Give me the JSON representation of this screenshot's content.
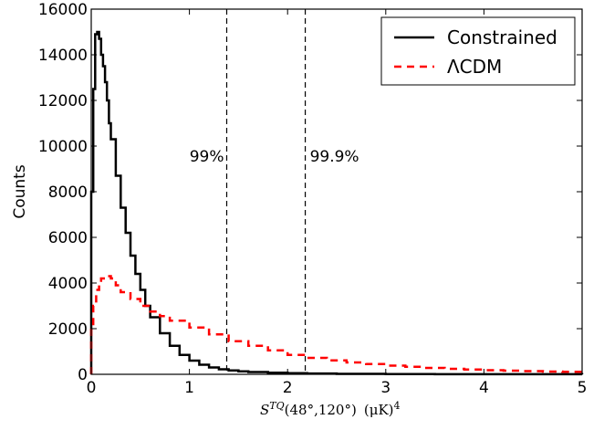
{
  "chart_data": {
    "type": "line",
    "title": "",
    "xlabel": {
      "main": "S",
      "sup": "TQ",
      "args": "(48°,120°)",
      "units": "(μK)",
      "power": "4"
    },
    "ylabel": "Counts",
    "xlim": [
      0,
      5
    ],
    "ylim": [
      0,
      16000
    ],
    "xticks": [
      "0",
      "1",
      "2",
      "3",
      "4",
      "5"
    ],
    "yticks": [
      "0",
      "2000",
      "4000",
      "6000",
      "8000",
      "10000",
      "12000",
      "14000",
      "16000"
    ],
    "grid": false,
    "legend_position": "top-right",
    "series": [
      {
        "name": "Constrained",
        "color": "#000000",
        "style": "solid-step",
        "x": [
          0.0,
          0.02,
          0.04,
          0.06,
          0.08,
          0.1,
          0.12,
          0.14,
          0.16,
          0.18,
          0.2,
          0.25,
          0.3,
          0.35,
          0.4,
          0.45,
          0.5,
          0.55,
          0.6,
          0.7,
          0.8,
          0.9,
          1.0,
          1.1,
          1.2,
          1.3,
          1.4,
          1.5,
          1.6,
          1.8,
          2.0,
          2.2,
          2.5,
          3.0,
          3.5,
          4.0,
          5.0
        ],
        "y": [
          8000,
          12500,
          14900,
          15000,
          14700,
          14000,
          13500,
          12800,
          12000,
          11000,
          10300,
          8700,
          7300,
          6200,
          5200,
          4400,
          3700,
          3000,
          2500,
          1800,
          1250,
          850,
          600,
          420,
          300,
          220,
          170,
          130,
          100,
          70,
          50,
          35,
          20,
          10,
          5,
          2,
          0
        ]
      },
      {
        "name": "ΛCDM",
        "color": "#ff0000",
        "style": "dashed-step",
        "x": [
          0.0,
          0.02,
          0.05,
          0.08,
          0.1,
          0.15,
          0.2,
          0.25,
          0.3,
          0.4,
          0.5,
          0.6,
          0.7,
          0.8,
          1.0,
          1.2,
          1.4,
          1.6,
          1.8,
          2.0,
          2.2,
          2.4,
          2.6,
          2.8,
          3.0,
          3.2,
          3.4,
          3.6,
          3.8,
          4.0,
          4.2,
          4.4,
          4.6,
          4.8,
          5.0
        ],
        "y": [
          2000,
          3000,
          3700,
          4000,
          4200,
          4300,
          4200,
          3900,
          3600,
          3300,
          3000,
          2750,
          2550,
          2350,
          2050,
          1750,
          1450,
          1250,
          1050,
          850,
          720,
          610,
          520,
          450,
          380,
          330,
          280,
          240,
          210,
          180,
          160,
          140,
          120,
          110,
          100
        ]
      }
    ],
    "vlines": [
      {
        "x": 1.38,
        "label": "99%"
      },
      {
        "x": 2.18,
        "label": "99.9%"
      }
    ]
  }
}
